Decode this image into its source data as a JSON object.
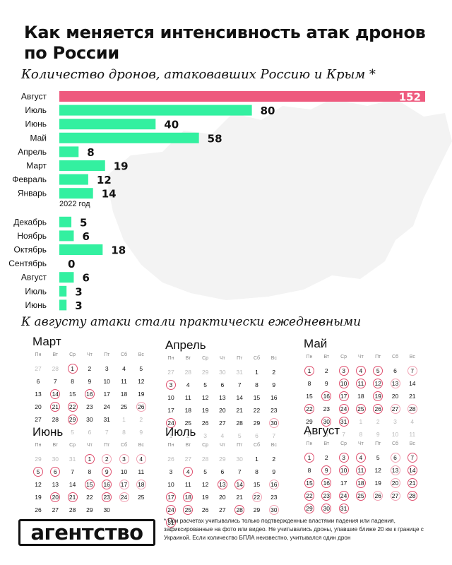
{
  "title": "Как меняется интенсивность атак дронов по России",
  "subtitle": "Количество дронов, атаковавших Россию и Крым *",
  "subtitle2": "К августу атаки стали практически ежедневными",
  "colors": {
    "highlight": "#ee5a7e",
    "bar": "#33f0a0",
    "map": "#f2f2f2",
    "circle": "#e0506f"
  },
  "chart_data": {
    "type": "bar",
    "orientation": "horizontal",
    "title": "Количество дронов, атаковавших Россию и Крым *",
    "section_label": "2022 год",
    "categories": [
      "Август",
      "Июль",
      "Июнь",
      "Май",
      "Апрель",
      "Март",
      "Февраль",
      "Январь",
      "Декабрь",
      "Ноябрь",
      "Октябрь",
      "Сентябрь",
      "Август",
      "Июль",
      "Июнь"
    ],
    "values": [
      152,
      80,
      40,
      58,
      8,
      19,
      12,
      14,
      5,
      6,
      18,
      0,
      6,
      3,
      3
    ],
    "xlim": [
      0,
      152
    ],
    "grid": false,
    "highlight_index": 0
  },
  "calendars": [
    {
      "name": "Март",
      "weekdays": [
        "Пн",
        "Вт",
        "Ср",
        "Чт",
        "Пт",
        "Сб",
        "Вс"
      ],
      "lead": [
        "27",
        "28"
      ],
      "days": 31,
      "trail": [
        "1",
        "2",
        "3",
        "4",
        "5",
        "6",
        "7",
        "8",
        "9"
      ],
      "attacks": [
        1,
        14,
        16,
        21,
        22,
        29
      ],
      "weak": [
        26
      ]
    },
    {
      "name": "Апрель",
      "weekdays": [
        "Пн",
        "Вт",
        "Ср",
        "Чт",
        "Пт",
        "Сб",
        "Вс"
      ],
      "lead": [
        "27",
        "28",
        "29",
        "30",
        "31"
      ],
      "days": 30,
      "trail": [
        "1",
        "2",
        "3",
        "4",
        "5",
        "6",
        "7"
      ],
      "attacks": [
        3,
        24
      ],
      "weak": [
        30
      ]
    },
    {
      "name": "Май",
      "weekdays": [
        "Пн",
        "Вт",
        "Ср",
        "Чт",
        "Пт",
        "Сб",
        "Вс"
      ],
      "lead": [],
      "days": 31,
      "trail": [
        "1",
        "2",
        "3",
        "4",
        "5",
        "6",
        "7",
        "8",
        "9",
        "10",
        "11"
      ],
      "attacks": [
        1,
        3,
        4,
        5,
        10,
        11,
        12,
        16,
        17,
        19,
        22,
        24,
        25,
        26,
        30,
        31
      ],
      "weak": [
        7,
        13,
        27,
        28
      ]
    },
    {
      "name": "Июнь",
      "weekdays": [
        "Пн",
        "Вт",
        "Ср",
        "Чт",
        "Пт",
        "Сб",
        "Вс"
      ],
      "lead": [
        "29",
        "30",
        "31"
      ],
      "days": 30,
      "trail": [],
      "attacks": [
        1,
        5,
        6,
        9,
        15,
        16,
        20,
        21,
        23
      ],
      "weak": [
        2,
        3,
        4,
        17,
        18,
        24
      ]
    },
    {
      "name": "Июль",
      "weekdays": [
        "Пн",
        "Вт",
        "Ср",
        "Чт",
        "Пт",
        "Сб",
        "Вс"
      ],
      "lead": [
        "26",
        "27",
        "28",
        "29",
        "30"
      ],
      "days": 31,
      "trail": [],
      "attacks": [
        4,
        13,
        14,
        17,
        18,
        24,
        25,
        28,
        31
      ],
      "weak": [
        16,
        22,
        30
      ]
    },
    {
      "name": "Август",
      "weekdays": [
        "Пн",
        "Вт",
        "Ср",
        "Чт",
        "Пт",
        "Сб",
        "Вс"
      ],
      "lead": [],
      "days": 31,
      "trail": [],
      "attacks": [
        1,
        3,
        4,
        7,
        9,
        10,
        11,
        14,
        15,
        16,
        18,
        21,
        22,
        23,
        24,
        25,
        28,
        29,
        30,
        31
      ],
      "weak": [
        6,
        13,
        20,
        26,
        27
      ]
    }
  ],
  "logo": "агентство",
  "footnote": "* При расчетах учитывались только подтвержденные властями падения или падения, зафиксированные на фото или видео. Не учитывались дроны, упавшие ближе 20 км к границе с Украиной. Если количество БПЛА неизвестно, учитывался один дрон"
}
